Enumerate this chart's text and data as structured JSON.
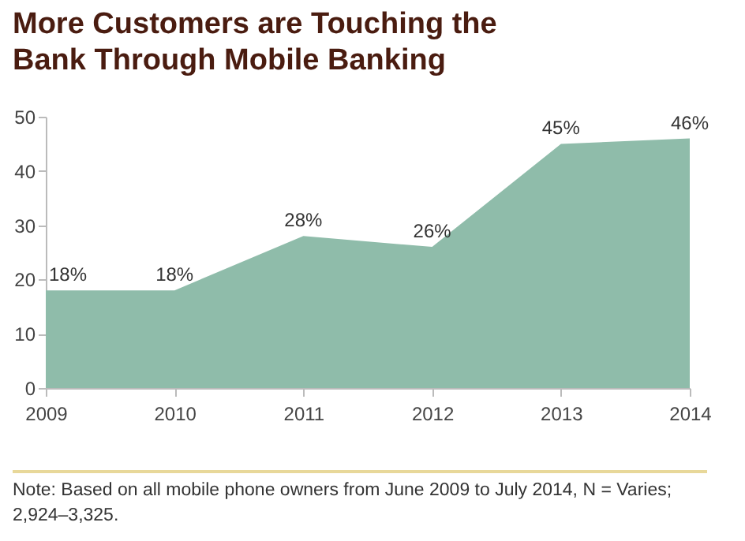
{
  "chart_data": {
    "type": "area",
    "title": "More Customers are Touching the Bank Through Mobile Banking",
    "annotations": [
      "Note: Based on all mobile phone owners from June 2009 to July 2014, N = Varies; 2,924–3,325."
    ],
    "x": [
      2009,
      2010,
      2011,
      2012,
      2013,
      2014
    ],
    "values": [
      18,
      18,
      28,
      26,
      45,
      46
    ],
    "value_labels": [
      "18%",
      "18%",
      "28%",
      "26%",
      "45%",
      "46%"
    ],
    "color": "#8fbcaa",
    "xlim": [
      2009,
      2014
    ],
    "xticks": [
      2009,
      2010,
      2011,
      2012,
      2013,
      2014
    ],
    "ylim": [
      0,
      50
    ],
    "yticks": [
      0,
      10,
      20,
      30,
      40,
      50
    ],
    "grid": false
  }
}
